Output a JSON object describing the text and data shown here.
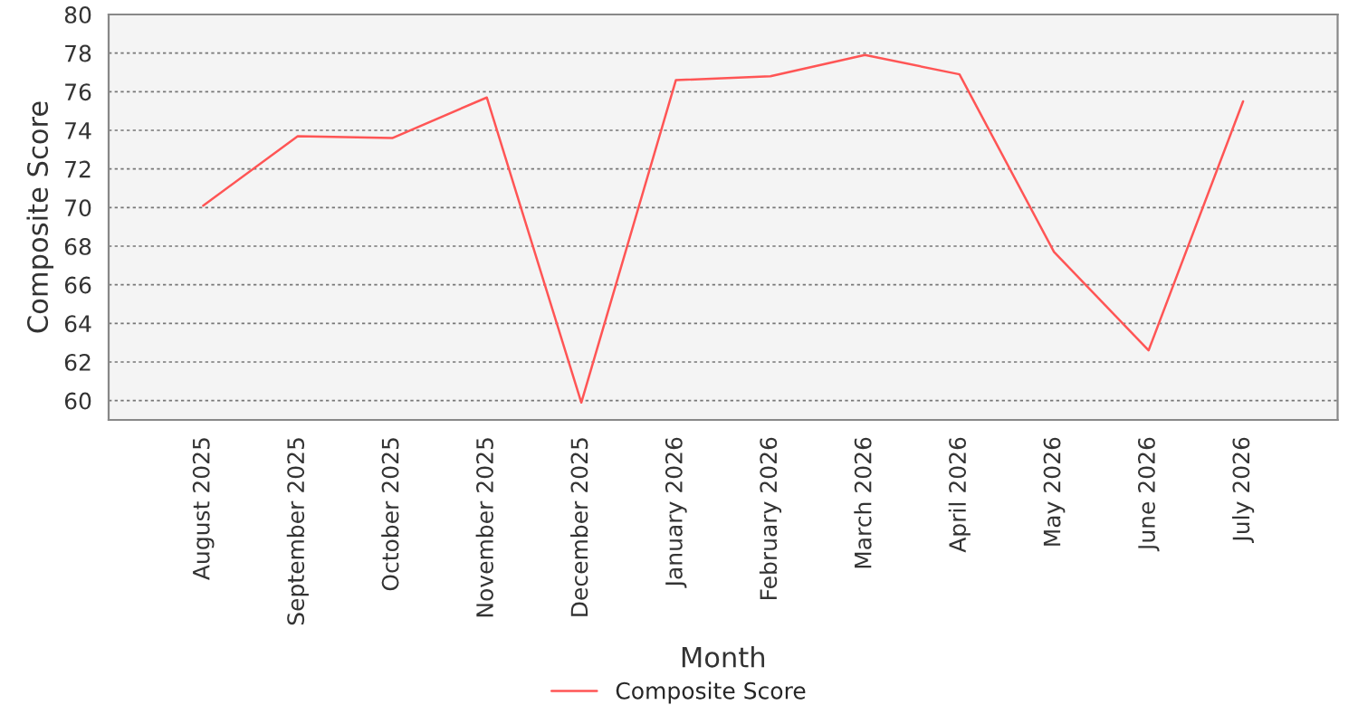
{
  "chart_data": {
    "type": "line",
    "xlabel": "Month",
    "ylabel": "Composite Score",
    "categories": [
      "August 2025",
      "September 2025",
      "October 2025",
      "November 2025",
      "December 2025",
      "January 2026",
      "February 2026",
      "March 2026",
      "April 2026",
      "May 2026",
      "June 2026",
      "July 2026"
    ],
    "series": [
      {
        "name": "Composite Score",
        "color": "#ff5555",
        "values": [
          70.1,
          73.7,
          73.6,
          75.7,
          59.9,
          76.6,
          76.8,
          77.9,
          76.9,
          67.7,
          62.6,
          75.5
        ]
      }
    ],
    "ylim": [
      59,
      80
    ],
    "yticks": [
      60,
      62,
      64,
      66,
      68,
      70,
      72,
      74,
      76,
      78,
      80
    ],
    "grid": "y",
    "legend": "bottom",
    "marker": "none",
    "line_style": "solid"
  }
}
